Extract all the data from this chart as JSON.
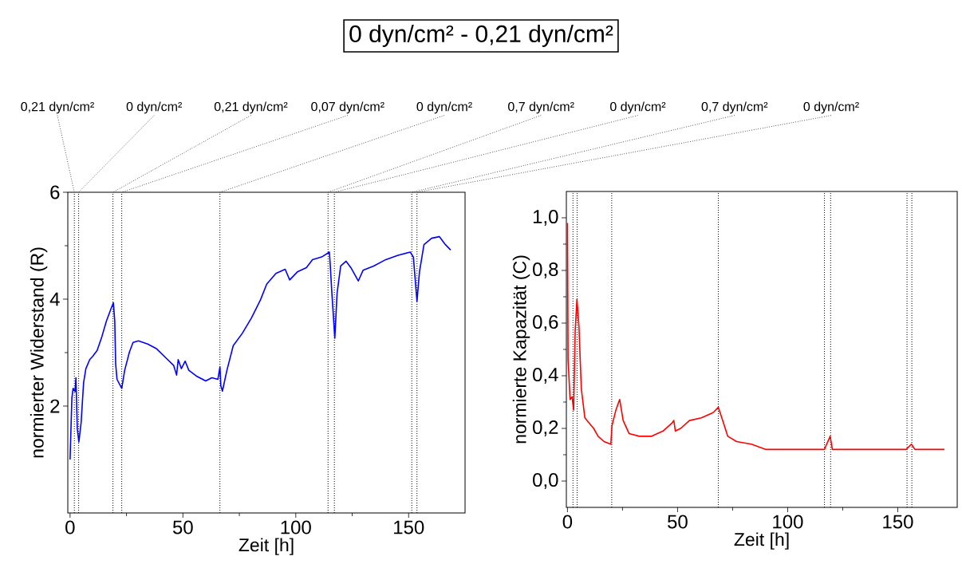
{
  "chart_data": [
    {
      "type": "line",
      "title": "0 dyn/cm² - 0,21 dyn/cm²",
      "xlabel": "Zeit [h]",
      "ylabel": "normierter Widerstand (R)",
      "xlim": [
        -1,
        175
      ],
      "ylim": [
        0,
        6
      ],
      "xticks": [
        0,
        50,
        100,
        150
      ],
      "yticks": [
        2,
        4,
        6
      ],
      "ref_lines": [
        {
          "axis": "x",
          "value": 1.9,
          "label": "0,21 dyn/cm²"
        },
        {
          "axis": "x",
          "value": 3.8,
          "label": "0 dyn/cm²"
        },
        {
          "axis": "x",
          "value": 19,
          "label": "0,21 dyn/cm²"
        },
        {
          "axis": "x",
          "value": 22.9,
          "label": "0,07 dyn/cm²"
        },
        {
          "axis": "x",
          "value": 66.4,
          "label": "0 dyn/cm²"
        },
        {
          "axis": "x",
          "value": 114.3,
          "label": "0,7 dyn/cm²"
        },
        {
          "axis": "x",
          "value": 117.1,
          "label": "0 dyn/cm²"
        },
        {
          "axis": "x",
          "value": 151.4,
          "label": "0,7 dyn/cm²"
        },
        {
          "axis": "x",
          "value": 153.7,
          "label": "0 dyn/cm²"
        }
      ],
      "series": [
        {
          "color": "#0000ff",
          "x": [
            0,
            0.8,
            1.35,
            2.2,
            2.6,
            3.2,
            3.9,
            4.9,
            6.0,
            7.0,
            8.7,
            10.0,
            12.0,
            14.1,
            16.1,
            18.4,
            19.2,
            19.8,
            20.2,
            20.8,
            22.9,
            24.2,
            26.3,
            27.9,
            30.3,
            34.4,
            38.4,
            42.5,
            45.9,
            47.2,
            47.9,
            49.3,
            51.0,
            52.6,
            56.0,
            60.1,
            62.8,
            65.5,
            66.4,
            66.8,
            67.5,
            69.5,
            72.3,
            76.3,
            80.4,
            84.4,
            87.1,
            91.2,
            95.3,
            97.3,
            100.7,
            104.7,
            107.4,
            111.5,
            114.9,
            115.3,
            116.0,
            117.3,
            118.3,
            119.9,
            122.3,
            124.4,
            127.7,
            129.8,
            134.5,
            139.9,
            145.3,
            150.7,
            152.1,
            153.7,
            154.8,
            156.8,
            160.2,
            163.6,
            166.3,
            168.6
          ],
          "values": [
            1.0,
            2.15,
            2.33,
            2.27,
            2.53,
            1.58,
            1.33,
            1.69,
            2.44,
            2.7,
            2.87,
            2.93,
            3.04,
            3.3,
            3.59,
            3.85,
            3.93,
            3.59,
            2.79,
            2.5,
            2.33,
            2.67,
            3.01,
            3.19,
            3.22,
            3.16,
            3.07,
            2.9,
            2.76,
            2.58,
            2.87,
            2.7,
            2.84,
            2.67,
            2.56,
            2.47,
            2.53,
            2.5,
            2.73,
            2.38,
            2.28,
            2.67,
            3.13,
            3.36,
            3.65,
            3.99,
            4.28,
            4.48,
            4.56,
            4.36,
            4.51,
            4.59,
            4.74,
            4.79,
            4.88,
            4.62,
            4.11,
            3.27,
            4.11,
            4.62,
            4.71,
            4.59,
            4.34,
            4.54,
            4.62,
            4.74,
            4.82,
            4.88,
            4.79,
            3.96,
            4.51,
            5.02,
            5.14,
            5.17,
            5.02,
            4.92
          ]
        }
      ]
    },
    {
      "type": "line",
      "xlabel": "Zeit [h]",
      "ylabel": "normierte Kapazität (C)",
      "xlim": [
        -0.5,
        177
      ],
      "ylim": [
        -0.1,
        1.1
      ],
      "xticks": [
        0,
        50,
        100,
        150
      ],
      "yticks": [
        {
          "value": 0,
          "label": "0,0"
        },
        {
          "value": 0.2,
          "label": "0,2"
        },
        {
          "value": 0.4,
          "label": "0,4"
        },
        {
          "value": 0.6,
          "label": "0,6"
        },
        {
          "value": 0.8,
          "label": "0,8"
        },
        {
          "value": 1.0,
          "label": "1,0"
        }
      ],
      "ref_lines": [
        {
          "axis": "x",
          "value": 2.5
        },
        {
          "axis": "x",
          "value": 4.4
        },
        {
          "axis": "x",
          "value": 20.1
        },
        {
          "axis": "x",
          "value": 68.5
        },
        {
          "axis": "x",
          "value": 116.7
        },
        {
          "axis": "x",
          "value": 119.5
        },
        {
          "axis": "x",
          "value": 154.2
        },
        {
          "axis": "x",
          "value": 156.4
        }
      ],
      "series": [
        {
          "color": "#ff0000",
          "x": [
            0,
            0.27,
            1.2,
            2.1,
            2.8,
            3.5,
            4.3,
            5.2,
            6.3,
            7.9,
            9.9,
            11.9,
            13.9,
            16.6,
            19.7,
            20.2,
            22.0,
            23.7,
            25.3,
            28.0,
            32.7,
            38.0,
            43.4,
            47.4,
            48.3,
            49.0,
            51.4,
            55.4,
            60.8,
            66.1,
            68.5,
            70.1,
            72.8,
            76.8,
            83.5,
            90.2,
            100.9,
            109.0,
            116.7,
            117.7,
            119.3,
            120.3,
            130.4,
            141.1,
            153.8,
            156.2,
            157.8,
            171.2
          ],
          "values": [
            0.98,
            0.46,
            0.31,
            0.32,
            0.27,
            0.57,
            0.69,
            0.59,
            0.35,
            0.24,
            0.22,
            0.2,
            0.17,
            0.15,
            0.14,
            0.21,
            0.27,
            0.31,
            0.23,
            0.18,
            0.17,
            0.17,
            0.19,
            0.22,
            0.23,
            0.19,
            0.2,
            0.23,
            0.24,
            0.26,
            0.28,
            0.24,
            0.17,
            0.15,
            0.14,
            0.12,
            0.12,
            0.12,
            0.12,
            0.14,
            0.17,
            0.12,
            0.12,
            0.12,
            0.12,
            0.14,
            0.12,
            0.12
          ]
        }
      ]
    }
  ]
}
